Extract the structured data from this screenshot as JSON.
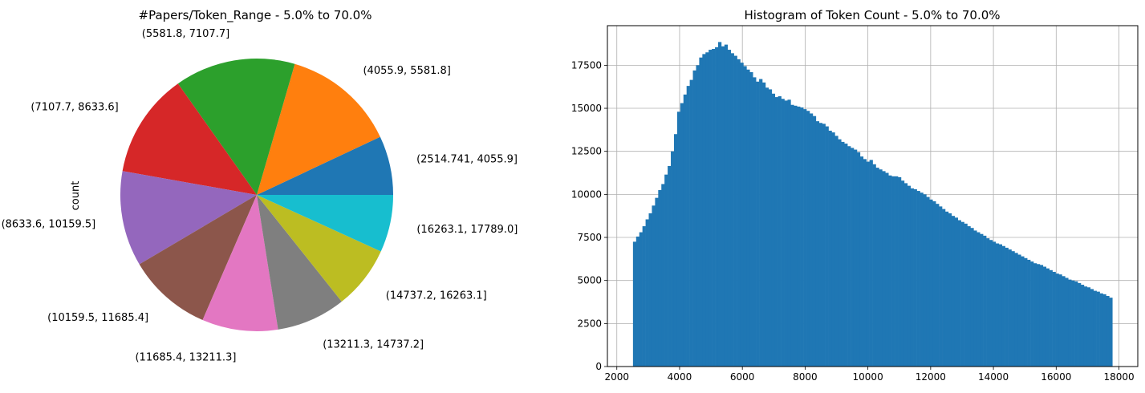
{
  "chart_data": [
    {
      "type": "pie",
      "title": "#Papers/Token_Range - 5.0% to 70.0%",
      "ylabel": "count",
      "categories": [
        "(2514.741, 4055.9]",
        "(4055.9, 5581.8]",
        "(5581.8, 7107.7]",
        "(7107.7, 8633.6]",
        "(8633.6, 10159.5]",
        "(10159.5, 11685.4]",
        "(11685.4, 13211.3]",
        "(13211.3, 14737.2]",
        "(14737.2, 16263.1]",
        "(16263.1, 17789.0]"
      ],
      "values": [
        7.0,
        13.5,
        14.3,
        12.4,
        11.3,
        10.0,
        9.0,
        8.2,
        7.5,
        6.8
      ],
      "colors": [
        "#1f77b4",
        "#ff7f0e",
        "#2ca02c",
        "#d62728",
        "#9467bd",
        "#8c564b",
        "#e377c2",
        "#7f7f7f",
        "#bcbd22",
        "#17becf"
      ]
    },
    {
      "type": "bar",
      "title": "Histogram of Token Count -  5.0% to 70.0%",
      "color": "#1f77b4",
      "grid": true,
      "xlim": [
        1700,
        18600
      ],
      "ylim": [
        0,
        19800
      ],
      "xticks": [
        "2000",
        "4000",
        "6000",
        "8000",
        "10000",
        "12000",
        "14000",
        "16000",
        "18000"
      ],
      "yticks": [
        "0",
        "2500",
        "5000",
        "7500",
        "10000",
        "12500",
        "15000",
        "17500"
      ],
      "bin_start": 2514.741,
      "bin_end": 17789.0,
      "values": [
        7250,
        7550,
        7800,
        8150,
        8550,
        8900,
        9350,
        9800,
        10250,
        10600,
        11150,
        11650,
        12500,
        13500,
        14800,
        15300,
        15800,
        16300,
        16650,
        17200,
        17500,
        17950,
        18150,
        18250,
        18400,
        18450,
        18550,
        18850,
        18600,
        18700,
        18400,
        18200,
        18050,
        17850,
        17650,
        17450,
        17250,
        17100,
        16800,
        16550,
        16700,
        16500,
        16200,
        16100,
        15850,
        15650,
        15700,
        15550,
        15450,
        15500,
        15200,
        15150,
        15100,
        15050,
        14950,
        14850,
        14700,
        14550,
        14250,
        14150,
        14100,
        13950,
        13700,
        13600,
        13400,
        13200,
        13050,
        12950,
        12800,
        12700,
        12600,
        12450,
        12200,
        12050,
        11900,
        12000,
        11750,
        11550,
        11450,
        11350,
        11250,
        11100,
        11050,
        11050,
        11000,
        10800,
        10650,
        10500,
        10350,
        10300,
        10200,
        10100,
        10000,
        9850,
        9700,
        9600,
        9450,
        9300,
        9150,
        9000,
        8900,
        8750,
        8650,
        8500,
        8400,
        8300,
        8150,
        8050,
        7900,
        7800,
        7700,
        7600,
        7450,
        7350,
        7250,
        7150,
        7100,
        7000,
        6900,
        6800,
        6700,
        6600,
        6500,
        6400,
        6300,
        6200,
        6100,
        6000,
        5950,
        5900,
        5800,
        5700,
        5600,
        5500,
        5400,
        5350,
        5250,
        5150,
        5050,
        5000,
        4950,
        4850,
        4750,
        4650,
        4600,
        4500,
        4400,
        4350,
        4250,
        4200,
        4100,
        4000
      ]
    }
  ]
}
